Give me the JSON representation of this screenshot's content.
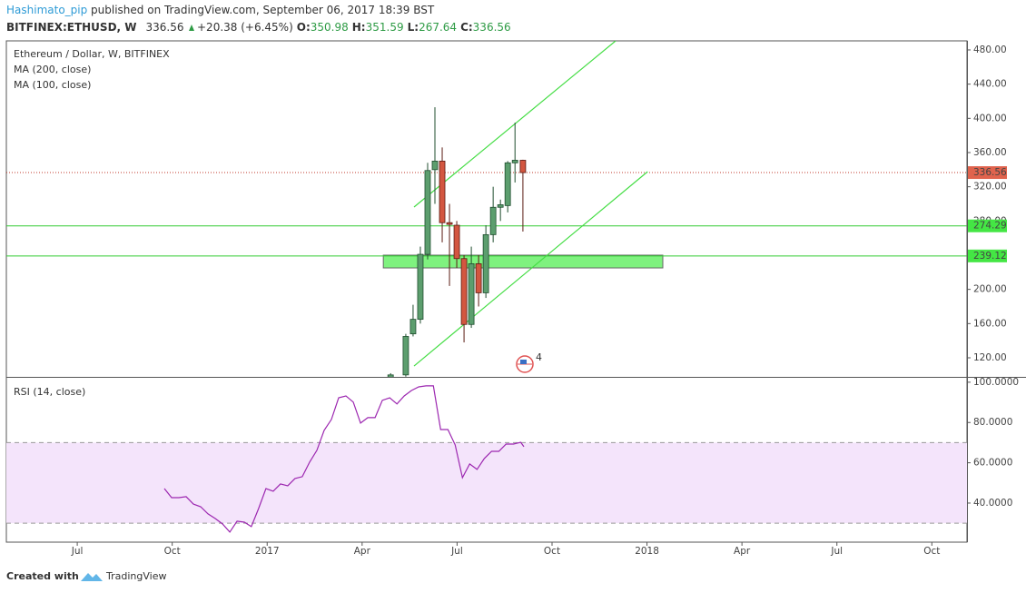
{
  "header": {
    "author": "Hashimato_pip",
    "published": " published on TradingView.com, September 06, 2017 18:39 BST",
    "symbol": "BITFINEX:ETHUSD, W",
    "price": "336.56",
    "change": "+20.38 (+6.45%)",
    "ohlc": [
      {
        "label": "O:",
        "value": "350.98"
      },
      {
        "label": "H:",
        "value": "351.59"
      },
      {
        "label": "L:",
        "value": "267.64"
      },
      {
        "label": "C:",
        "value": "336.56"
      }
    ]
  },
  "chart_data": [
    {
      "type": "candlestick",
      "legend": [
        "Ethereum / Dollar, W, BITFINEX",
        "MA (200, close)",
        "MA (100, close)"
      ],
      "x": [
        15.9,
        16.38,
        16.61,
        16.84,
        17.07,
        17.3,
        17.53,
        17.76,
        17.99,
        18.22,
        18.45,
        18.68,
        18.91,
        19.14,
        19.37,
        19.6,
        19.83,
        20.08
      ],
      "open": [
        96,
        100,
        148,
        165,
        241,
        340,
        350,
        278,
        275,
        236,
        159,
        230,
        196,
        264,
        296,
        298,
        348,
        350.98
      ],
      "high": [
        102,
        148,
        182,
        250,
        348,
        413,
        366,
        300,
        280,
        240,
        250,
        240,
        275,
        320,
        305,
        350,
        395,
        351.59
      ],
      "low": [
        94,
        98,
        145,
        160,
        235,
        300,
        255,
        204,
        225,
        138,
        155,
        180,
        190,
        255,
        280,
        290,
        325,
        267.64
      ],
      "close": [
        100,
        145,
        165,
        241,
        339,
        350,
        278,
        276,
        236,
        159,
        230,
        196,
        264,
        296,
        299,
        348,
        351,
        336.56
      ],
      "up_color": "#5c9e6e",
      "down_color": "#d35640",
      "up_border": "#1f4d2e",
      "down_border": "#5a1a12",
      "xlim": [
        3.76,
        34.11
      ],
      "xticks": [
        {
          "value": 6,
          "label": "Jul"
        },
        {
          "value": 9,
          "label": "Oct"
        },
        {
          "value": 12,
          "label": "2017"
        },
        {
          "value": 15,
          "label": "Apr"
        },
        {
          "value": 18,
          "label": "Jul"
        },
        {
          "value": 21,
          "label": "Oct"
        },
        {
          "value": 24,
          "label": "2018"
        },
        {
          "value": 27,
          "label": "Apr"
        },
        {
          "value": 30,
          "label": "Jul"
        },
        {
          "value": 33,
          "label": "Oct"
        }
      ],
      "ylim": [
        97.7,
        490.6
      ],
      "yticks": [
        {
          "value": 120,
          "label": "120.00"
        },
        {
          "value": 160,
          "label": "160.00"
        },
        {
          "value": 200,
          "label": "200.00"
        },
        {
          "value": 240,
          "label": "240.00"
        },
        {
          "value": 280,
          "label": "280.00"
        },
        {
          "value": 320,
          "label": "320.00"
        },
        {
          "value": 360,
          "label": "360.00"
        },
        {
          "value": 400,
          "label": "400.00"
        },
        {
          "value": 440,
          "label": "440.00"
        },
        {
          "value": 480,
          "label": "480.00"
        }
      ],
      "levels": [
        {
          "value": 336.56,
          "color": "#c0392b",
          "style": "dotted"
        },
        {
          "value": 274.29,
          "color": "#33cc33",
          "style": "solid"
        },
        {
          "value": 239.12,
          "color": "#33cc33",
          "style": "solid"
        }
      ],
      "zone": {
        "x": [
          15.67,
          24.5
        ],
        "y": [
          225.1,
          240.0
        ],
        "color": "#7ff27f"
      },
      "trend_lines": [
        {
          "x": [
            16.64,
            23.01
          ],
          "y": [
            296.3,
            490.6
          ],
          "color": "#44dd44"
        },
        {
          "x": [
            16.64,
            24.02
          ],
          "y": [
            110.4,
            337.7
          ],
          "color": "#44dd44"
        }
      ],
      "event": {
        "x": 20.14,
        "label": "4"
      }
    },
    {
      "type": "line",
      "legend": "RSI (14, close)",
      "x": [
        8.75,
        8.98,
        9.21,
        9.44,
        9.67,
        9.9,
        10.13,
        10.36,
        10.59,
        10.82,
        11.05,
        11.28,
        11.5,
        11.73,
        11.96,
        12.19,
        12.42,
        12.65,
        12.88,
        13.11,
        13.34,
        13.57,
        13.8,
        14.03,
        14.26,
        14.49,
        14.72,
        14.95,
        15.18,
        15.41,
        15.64,
        15.87,
        16.1,
        16.33,
        16.56,
        16.79,
        17.02,
        17.25,
        17.48,
        17.71,
        17.94,
        18.17,
        18.4,
        18.63,
        18.86,
        19.09,
        19.32,
        19.55,
        19.78,
        20.01,
        20.11
      ],
      "values": [
        47.2,
        42.7,
        42.7,
        43.2,
        39.5,
        38.2,
        34.6,
        32.3,
        29.6,
        25.6,
        31.0,
        30.5,
        28.3,
        37.3,
        47.2,
        45.9,
        49.5,
        48.6,
        52.2,
        53.1,
        60.3,
        66.2,
        76.1,
        81.5,
        92.3,
        93.2,
        90.1,
        79.7,
        82.4,
        82.4,
        91.0,
        92.3,
        89.2,
        93.2,
        95.9,
        97.7,
        98.2,
        98.2,
        76.5,
        76.5,
        68.9,
        52.6,
        59.4,
        56.7,
        62.1,
        65.7,
        65.7,
        69.3,
        69.3,
        70.2,
        68.0
      ],
      "color": "#9c27b0",
      "ylim": [
        20.6,
        102.2
      ],
      "yticks": [
        {
          "value": 40,
          "label": "40.0000"
        },
        {
          "value": 60,
          "label": "60.0000"
        },
        {
          "value": 80,
          "label": "80.0000"
        },
        {
          "value": 100,
          "label": "100.0000"
        }
      ],
      "band": [
        30,
        70
      ],
      "band_color": "#f4e4fb"
    }
  ],
  "footer": {
    "created": "Created with",
    "brand": "TradingView"
  }
}
